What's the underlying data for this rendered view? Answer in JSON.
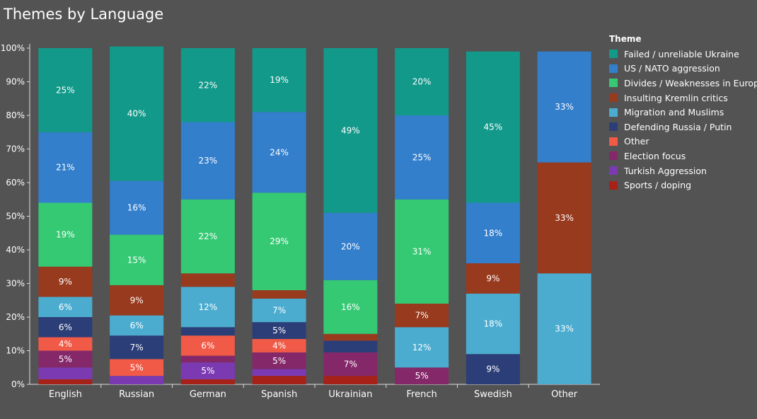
{
  "chart_data": {
    "type": "bar",
    "stacked": true,
    "title": "Themes by Language",
    "xlabel": "",
    "ylabel": "",
    "ylim": [
      0,
      100
    ],
    "y_ticks": [
      "0%",
      "10%",
      "20%",
      "30%",
      "40%",
      "50%",
      "60%",
      "70%",
      "80%",
      "90%",
      "100%"
    ],
    "grid": false,
    "legend_position": "right",
    "legend_title": "Theme",
    "categories": [
      "English",
      "Russian",
      "German",
      "Spanish",
      "Ukrainian",
      "French",
      "Swedish",
      "Other"
    ],
    "series": [
      {
        "name": "Failed / unreliable Ukraine",
        "color": "#12998a",
        "values": [
          25,
          40,
          22,
          19,
          49,
          20,
          45,
          0
        ],
        "labels": [
          "25%",
          "40%",
          "22%",
          "19%",
          "49%",
          "20%",
          "45%",
          ""
        ]
      },
      {
        "name": "US / NATO aggression",
        "color": "#337fcc",
        "values": [
          21,
          16,
          23,
          24,
          20,
          25,
          18,
          33
        ],
        "labels": [
          "21%",
          "16%",
          "23%",
          "24%",
          "20%",
          "25%",
          "18%",
          "33%"
        ]
      },
      {
        "name": "Divides / Weaknesses in Europe",
        "color": "#36c974",
        "values": [
          19,
          15,
          22,
          29,
          16,
          31,
          0,
          0
        ],
        "labels": [
          "19%",
          "15%",
          "22%",
          "29%",
          "16%",
          "31%",
          "",
          ""
        ]
      },
      {
        "name": "Insulting Kremlin critics",
        "color": "#983a1e",
        "values": [
          9,
          9,
          4,
          2.5,
          2,
          7,
          9,
          33
        ],
        "labels": [
          "9%",
          "9%",
          "",
          "",
          "",
          "7%",
          "9%",
          "33%"
        ]
      },
      {
        "name": "Migration and Muslims",
        "color": "#4bacd0",
        "values": [
          6,
          6,
          12,
          7,
          0,
          12,
          18,
          33
        ],
        "labels": [
          "6%",
          "6%",
          "12%",
          "7%",
          "",
          "12%",
          "18%",
          "33%"
        ]
      },
      {
        "name": "Defending Russia / Putin",
        "color": "#2c3e78",
        "values": [
          6,
          7,
          2.5,
          5,
          3.5,
          0,
          9,
          0
        ],
        "labels": [
          "6%",
          "7%",
          "",
          "5%",
          "",
          "",
          "9%",
          ""
        ]
      },
      {
        "name": "Other",
        "color": "#f05a47",
        "values": [
          4,
          5,
          6,
          4,
          0,
          0,
          0,
          0
        ],
        "labels": [
          "4%",
          "5%",
          "6%",
          "4%",
          "",
          "",
          "",
          ""
        ]
      },
      {
        "name": "Election focus",
        "color": "#84286a",
        "values": [
          5,
          0,
          2,
          5,
          7,
          5,
          0,
          0
        ],
        "labels": [
          "5%",
          "",
          "",
          "5%",
          "7%",
          "5%",
          "",
          ""
        ]
      },
      {
        "name": "Turkish Aggression",
        "color": "#7c3ab2",
        "values": [
          3.5,
          2.5,
          5,
          2,
          0,
          0,
          0,
          0
        ],
        "labels": [
          "",
          "",
          "5%",
          "",
          "",
          "",
          "",
          ""
        ]
      },
      {
        "name": "Sports / doping",
        "color": "#a62218",
        "values": [
          1.5,
          0,
          1.5,
          2.5,
          2.5,
          0,
          0,
          0
        ],
        "labels": [
          "",
          "",
          "",
          "",
          "",
          "",
          "",
          ""
        ]
      }
    ]
  }
}
